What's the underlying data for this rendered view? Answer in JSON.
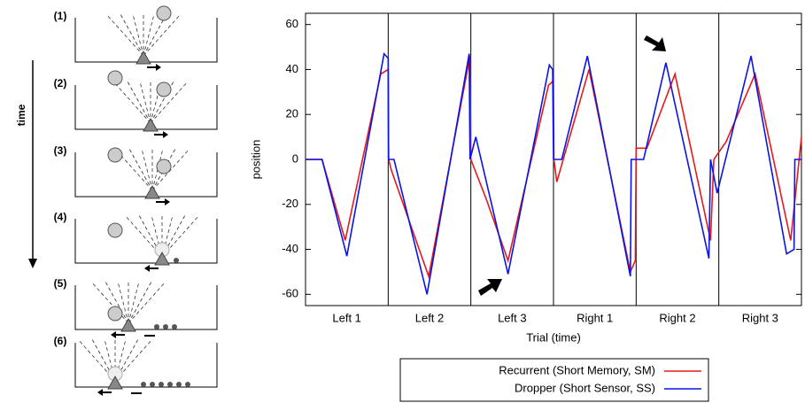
{
  "diagram": {
    "panel_labels": [
      "(1)",
      "(2)",
      "(3)",
      "(4)",
      "(5)",
      "(6)"
    ],
    "time_label": "time"
  },
  "chart_data": {
    "type": "line",
    "xlabel": "Trial (time)",
    "ylabel": "position",
    "categories": [
      "Left 1",
      "Left 2",
      "Left 3",
      "Right 1",
      "Right 2",
      "Right 3"
    ],
    "xlim": [
      0,
      6
    ],
    "ylim": [
      -65,
      65
    ],
    "yticks": [
      -60,
      -40,
      -20,
      0,
      20,
      40,
      60
    ],
    "legend": "bottom",
    "series": [
      {
        "name": "Recurrent (Short Memory, SM)",
        "color": "#e41a1c",
        "x": [
          0,
          0.2,
          0.48,
          0.91,
          1,
          1.005,
          1.04,
          1.49,
          1.99,
          2,
          2.18,
          2.45,
          2.94,
          3,
          3.005,
          3.04,
          3.43,
          3.93,
          3.99,
          4,
          4.13,
          4.47,
          4.9,
          4.94,
          5.09,
          5.44,
          5.87,
          6
        ],
        "values": [
          0,
          0,
          -36,
          38,
          40,
          0,
          -5,
          -52,
          46,
          0,
          -17,
          -45,
          33,
          35,
          0,
          -10,
          40,
          -50,
          -45,
          5,
          5,
          38,
          -36,
          0,
          8,
          38,
          -36,
          10
        ]
      },
      {
        "name": "Dropper (Short Sensor, SS)",
        "color": "#0a14e6",
        "x": [
          0,
          0.2,
          0.5,
          0.95,
          1,
          1.005,
          1.07,
          1.47,
          1.98,
          1.99,
          2.06,
          2.45,
          2.95,
          2.99,
          3,
          3.1,
          3.41,
          3.93,
          3.94,
          4.09,
          4.36,
          4.88,
          4.9,
          4.98,
          5.39,
          5.82,
          5.91,
          5.92,
          6
        ],
        "values": [
          0,
          0,
          -43,
          47,
          45,
          0,
          0,
          -60,
          47,
          0,
          10,
          -51,
          42,
          40,
          0,
          0,
          46,
          -52,
          0,
          0,
          43,
          -44,
          0,
          -15,
          46,
          -42,
          -40,
          0,
          0
        ]
      }
    ]
  }
}
